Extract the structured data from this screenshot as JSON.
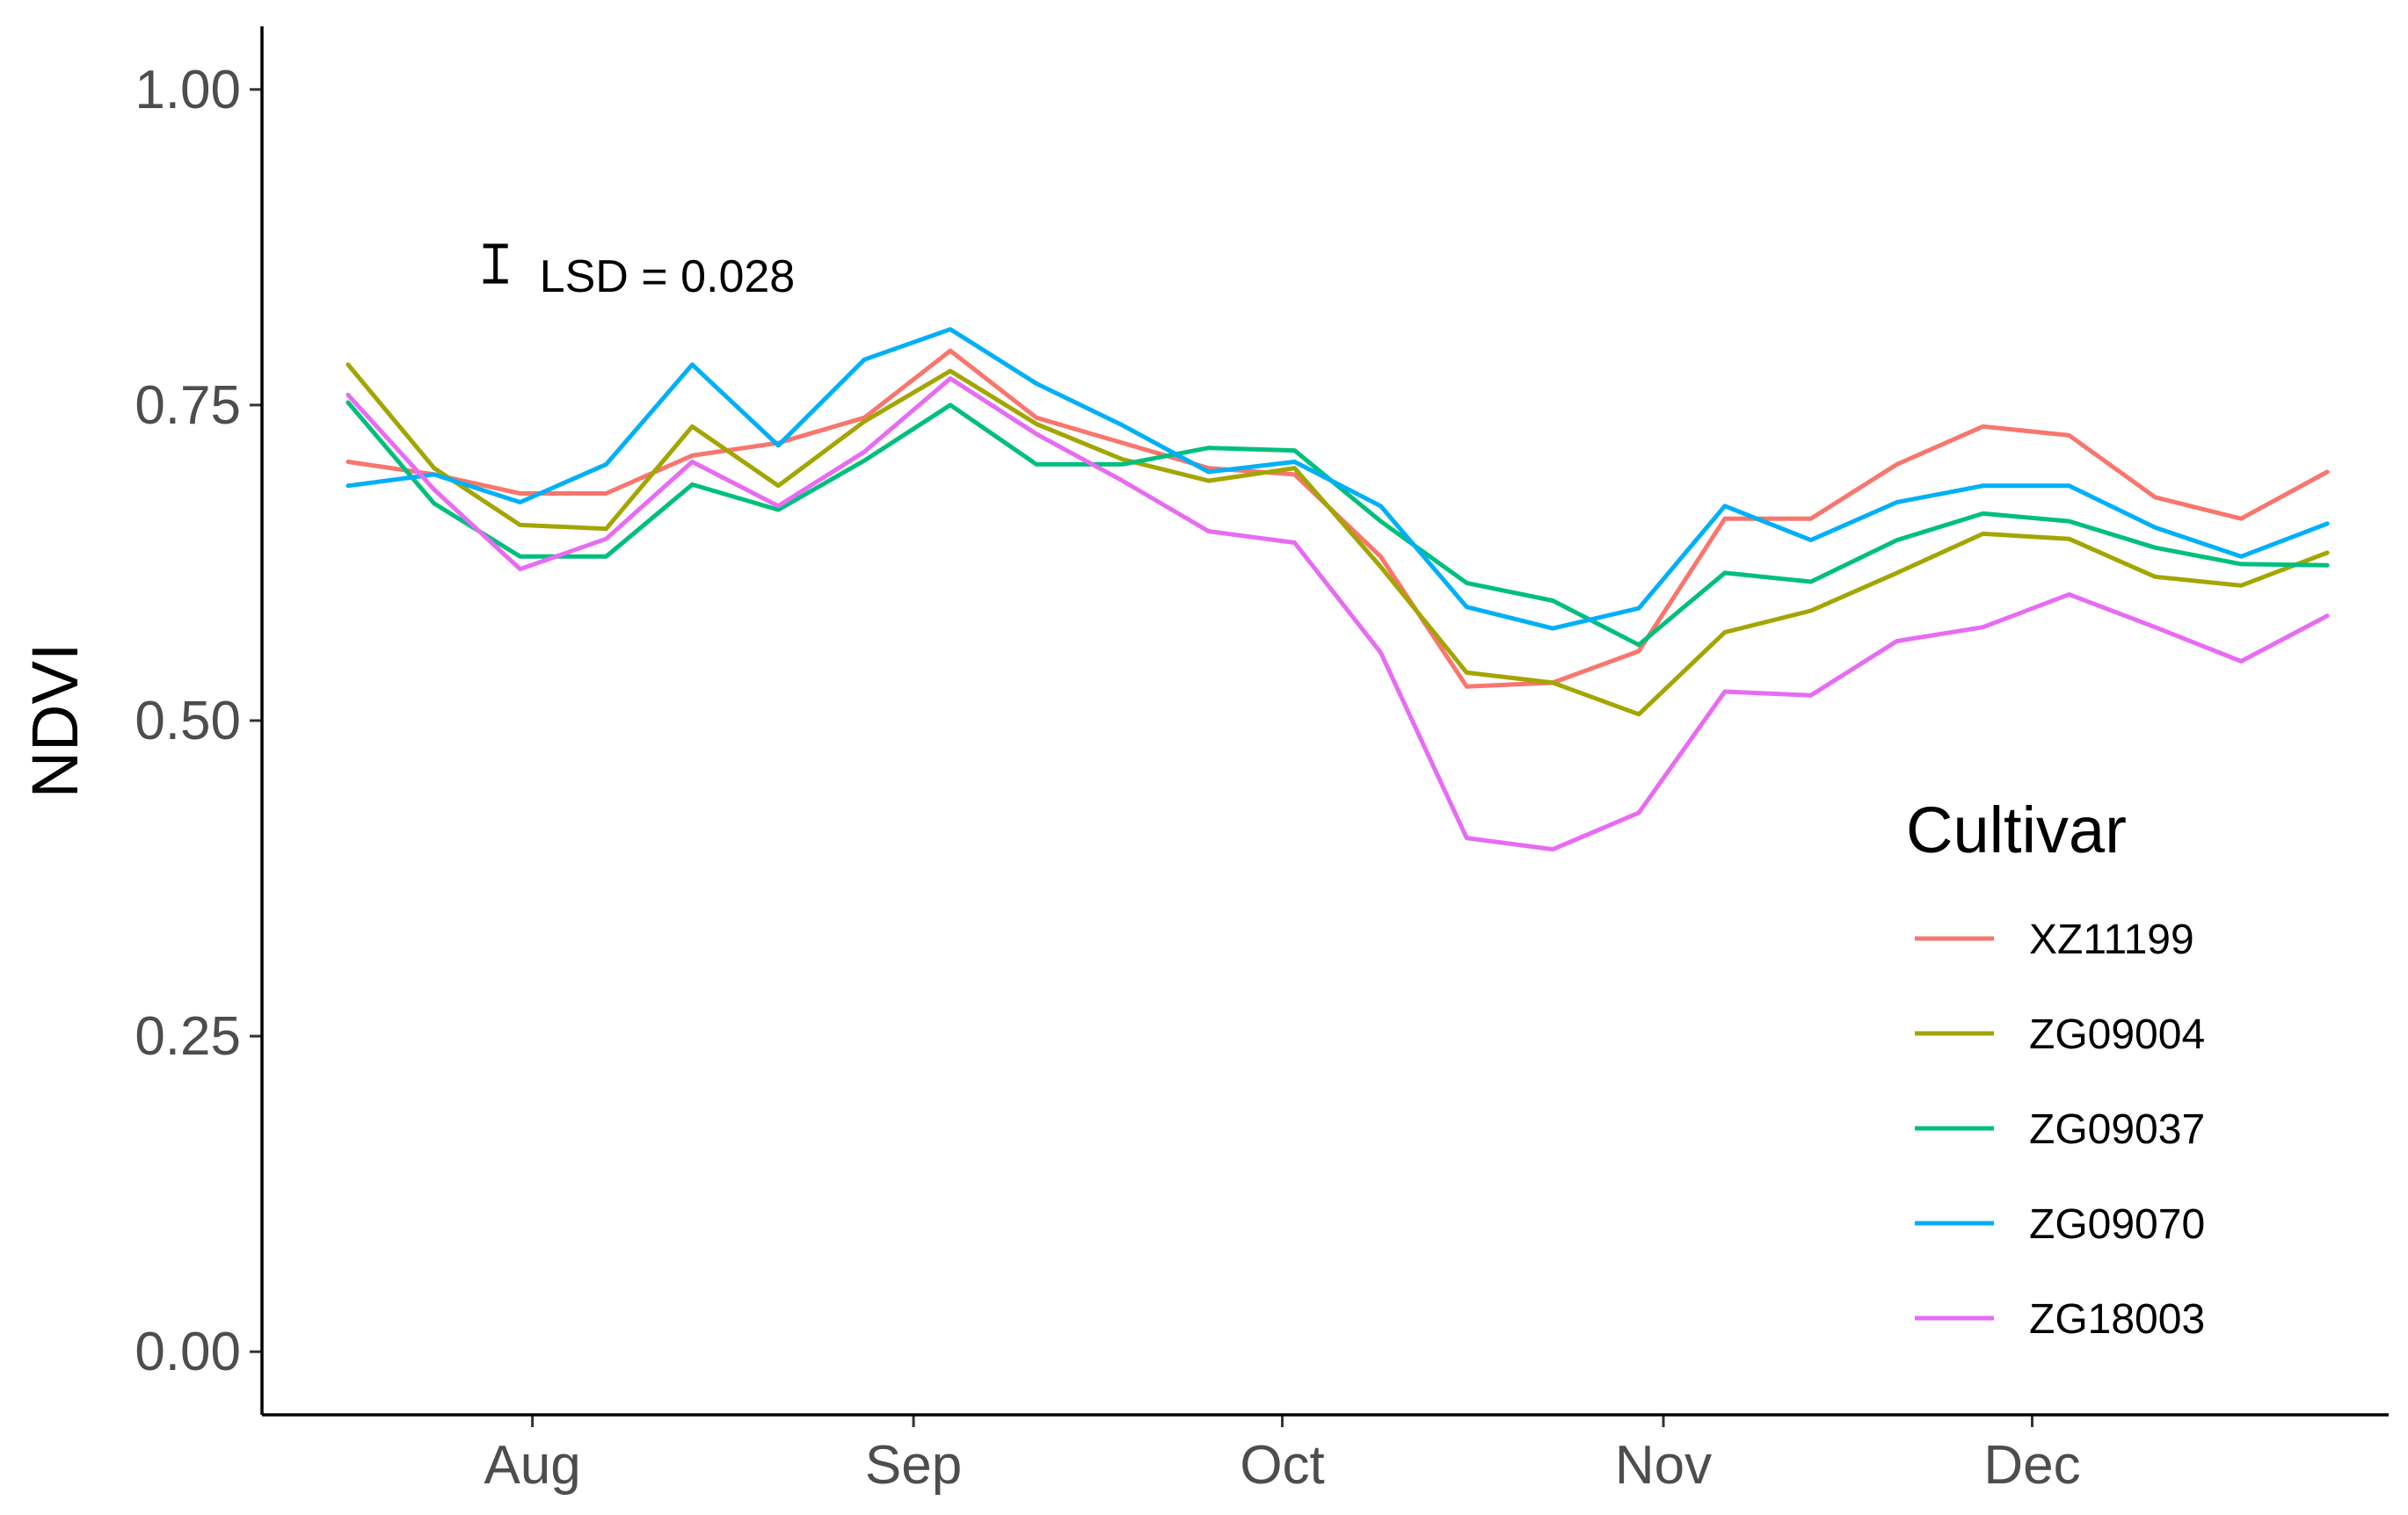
{
  "chart_data": {
    "type": "line",
    "title": "",
    "xlabel": "",
    "ylabel": "NDVI",
    "ylim": [
      -0.05,
      1.05
    ],
    "xlim": [
      "2020-07-10",
      "2020-12-30"
    ],
    "yticks": [
      0.0,
      0.25,
      0.5,
      0.75,
      1.0
    ],
    "ytick_labels": [
      "0.00",
      "0.25",
      "0.50",
      "0.75",
      "1.00"
    ],
    "xticks": [
      {
        "date": "2020-08-01",
        "label": "Aug"
      },
      {
        "date": "2020-09-01",
        "label": "Sep"
      },
      {
        "date": "2020-10-01",
        "label": "Oct"
      },
      {
        "date": "2020-11-01",
        "label": "Nov"
      },
      {
        "date": "2020-12-01",
        "label": "Dec"
      }
    ],
    "grid": false,
    "legend": {
      "title": "Cultivar",
      "position": "right"
    },
    "annotation": {
      "text": "LSD = 0.028",
      "x": "2020-07-29",
      "y": 0.862,
      "errorbar_half_width": 0.014
    },
    "x": [
      "2020-07-17",
      "2020-07-24",
      "2020-07-31",
      "2020-08-07",
      "2020-08-14",
      "2020-08-21",
      "2020-08-28",
      "2020-09-04",
      "2020-09-11",
      "2020-09-18",
      "2020-09-25",
      "2020-10-02",
      "2020-10-09",
      "2020-10-16",
      "2020-10-23",
      "2020-10-30",
      "2020-11-06",
      "2020-11-13",
      "2020-11-20",
      "2020-11-27",
      "2020-12-04",
      "2020-12-11",
      "2020-12-18",
      "2020-12-25"
    ],
    "series": [
      {
        "name": "XZ11199",
        "color": "#F8766D",
        "values": [
          0.705,
          0.695,
          0.68,
          0.68,
          0.71,
          0.72,
          0.74,
          0.793,
          0.74,
          0.72,
          0.7,
          0.695,
          0.63,
          0.527,
          0.53,
          0.555,
          0.66,
          0.66,
          0.703,
          0.733,
          0.726,
          0.677,
          0.66,
          0.697
        ]
      },
      {
        "name": "ZG09004",
        "color": "#A3A500",
        "values": [
          0.782,
          0.7,
          0.655,
          0.652,
          0.733,
          0.686,
          0.737,
          0.777,
          0.735,
          0.707,
          0.69,
          0.7,
          0.622,
          0.538,
          0.53,
          0.505,
          0.57,
          0.587,
          0.617,
          0.648,
          0.644,
          0.614,
          0.607,
          0.633
        ]
      },
      {
        "name": "ZG09037",
        "color": "#00BF7D",
        "values": [
          0.752,
          0.672,
          0.63,
          0.63,
          0.687,
          0.667,
          0.706,
          0.75,
          0.703,
          0.703,
          0.716,
          0.714,
          0.658,
          0.609,
          0.595,
          0.56,
          0.617,
          0.61,
          0.643,
          0.664,
          0.658,
          0.637,
          0.624,
          0.623
        ]
      },
      {
        "name": "ZG09070",
        "color": "#00B0F6",
        "values": [
          0.686,
          0.695,
          0.673,
          0.703,
          0.782,
          0.718,
          0.786,
          0.81,
          0.767,
          0.734,
          0.697,
          0.705,
          0.67,
          0.59,
          0.573,
          0.589,
          0.67,
          0.643,
          0.673,
          0.686,
          0.686,
          0.653,
          0.63,
          0.656
        ]
      },
      {
        "name": "ZG18003",
        "color": "#E76BF3",
        "values": [
          0.758,
          0.683,
          0.62,
          0.644,
          0.705,
          0.67,
          0.713,
          0.771,
          0.727,
          0.69,
          0.65,
          0.641,
          0.554,
          0.407,
          0.398,
          0.427,
          0.523,
          0.52,
          0.563,
          0.574,
          0.6,
          0.574,
          0.547,
          0.583
        ]
      }
    ]
  }
}
